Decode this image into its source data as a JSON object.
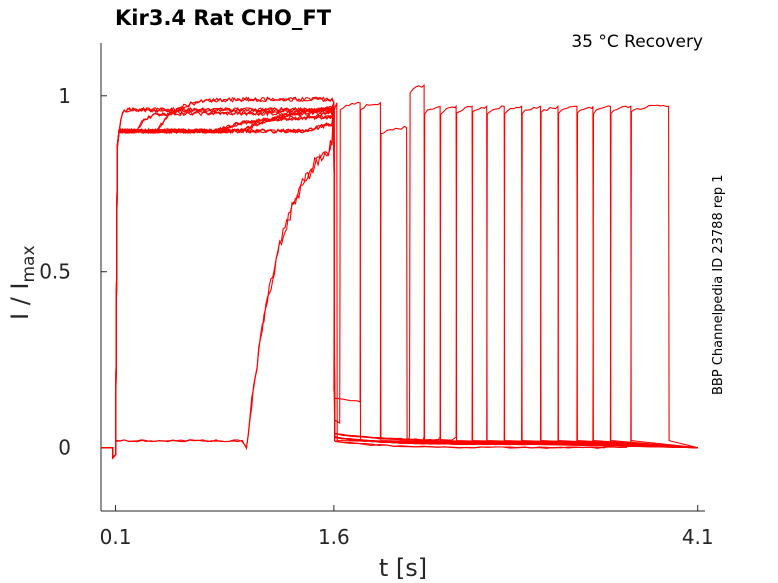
{
  "chart_data": {
    "type": "line",
    "title": "Kir3.4  Rat  CHO_FT",
    "subtitle": "35 °C  Recovery",
    "side_note": "BBP Channelpedia ID 23788 rep 1",
    "xlabel": "t [s]",
    "ylabel_main": "I / I",
    "ylabel_sub": "max",
    "xlim": [
      0.0,
      4.15
    ],
    "ylim": [
      -0.18,
      1.15
    ],
    "x_ticks": [
      {
        "value": 0.1,
        "label": "0.1"
      },
      {
        "value": 1.6,
        "label": "1.6"
      },
      {
        "value": 4.1,
        "label": "4.1"
      }
    ],
    "y_ticks": [
      {
        "value": 0,
        "label": "0"
      },
      {
        "value": 0.5,
        "label": "0.5"
      },
      {
        "value": 1,
        "label": "1"
      }
    ],
    "grid": false,
    "line_color": "#ff0000",
    "baseline": 0.0,
    "pulse1_start": 0.1,
    "pulse1_end": 1.6,
    "early_level": 0.02,
    "pulse2": [
      {
        "onset": 1.6,
        "end": 1.62,
        "peak": 0.98,
        "floor": 0.15
      },
      {
        "onset": 1.64,
        "end": 1.78,
        "peak": 0.98,
        "floor": 0.06
      },
      {
        "onset": 1.78,
        "end": 1.92,
        "peak": 0.98,
        "floor": 0.12
      },
      {
        "onset": 1.92,
        "end": 2.1,
        "peak": 0.91,
        "floor": 0.02
      },
      {
        "onset": 2.12,
        "end": 2.22,
        "peak": 1.03,
        "floor": 0.02
      },
      {
        "onset": 2.22,
        "end": 2.33,
        "peak": 0.97,
        "floor": 0.02
      },
      {
        "onset": 2.33,
        "end": 2.44,
        "peak": 0.97,
        "floor": 0.02
      },
      {
        "onset": 2.44,
        "end": 2.55,
        "peak": 0.97,
        "floor": 0.02
      },
      {
        "onset": 2.55,
        "end": 2.65,
        "peak": 0.97,
        "floor": 0.01
      },
      {
        "onset": 2.65,
        "end": 2.77,
        "peak": 0.97,
        "floor": 0.01
      },
      {
        "onset": 2.77,
        "end": 2.89,
        "peak": 0.97,
        "floor": 0.01
      },
      {
        "onset": 2.89,
        "end": 3.02,
        "peak": 0.97,
        "floor": 0.01
      },
      {
        "onset": 3.02,
        "end": 3.14,
        "peak": 0.97,
        "floor": 0.01
      },
      {
        "onset": 3.14,
        "end": 3.27,
        "peak": 0.97,
        "floor": 0.01
      },
      {
        "onset": 3.27,
        "end": 3.38,
        "peak": 0.97,
        "floor": 0.01
      },
      {
        "onset": 3.38,
        "end": 3.5,
        "peak": 0.97,
        "floor": 0.01
      },
      {
        "onset": 3.5,
        "end": 3.64,
        "peak": 0.97,
        "floor": 0.0
      },
      {
        "onset": 3.64,
        "end": 3.9,
        "peak": 0.97,
        "floor": 0.0
      }
    ]
  }
}
